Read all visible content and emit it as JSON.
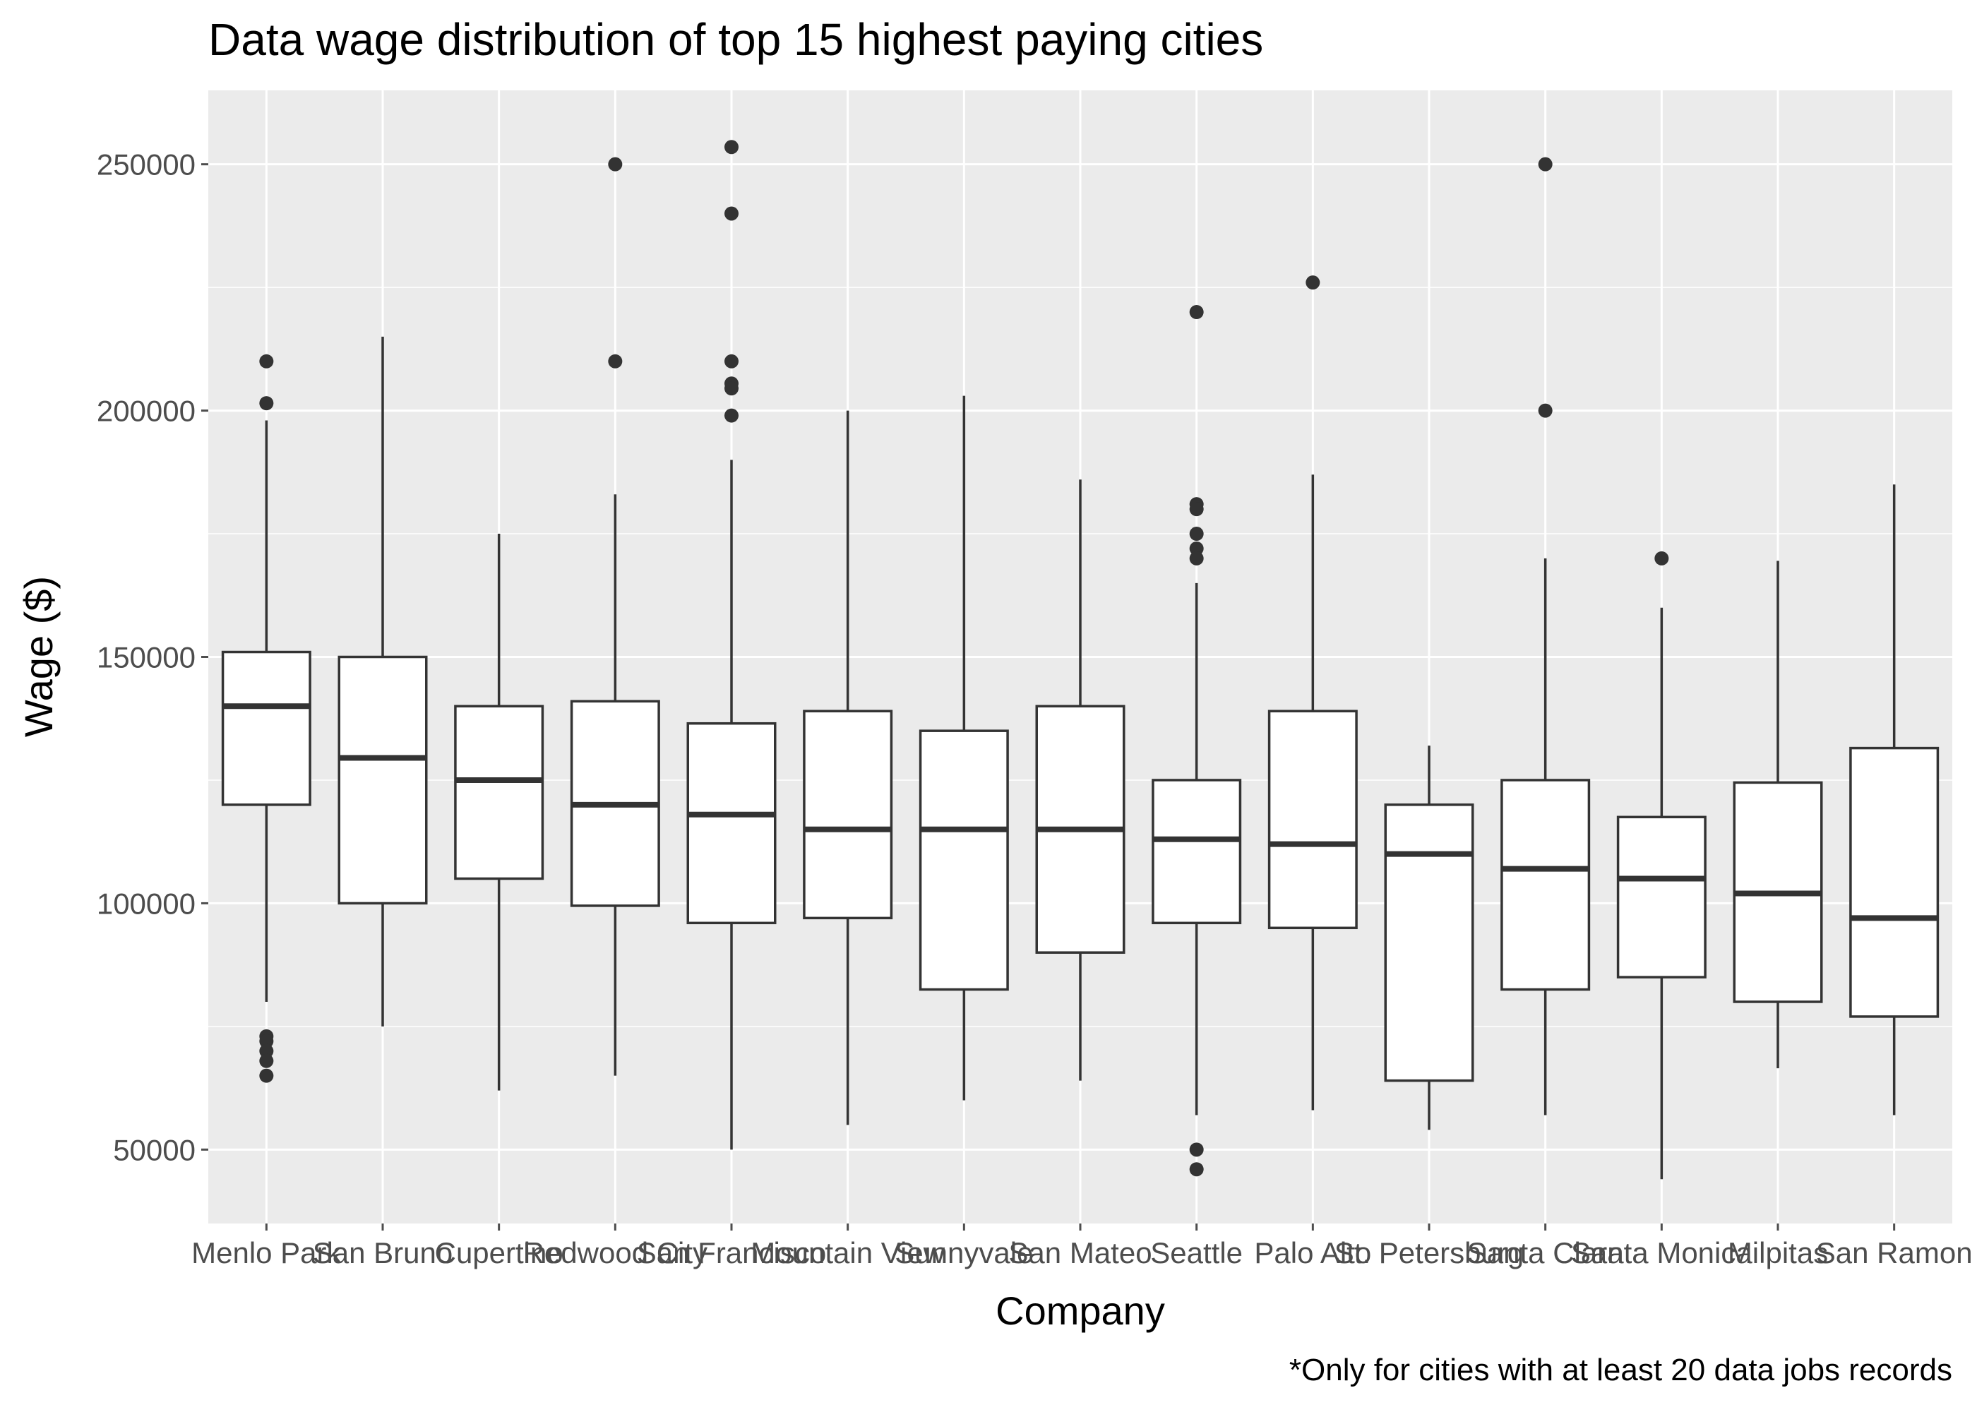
{
  "chart_data": {
    "type": "boxplot",
    "title": "Data wage distribution of top 15 highest paying cities",
    "xlabel": "Company",
    "ylabel": "Wage ($)",
    "caption": "*Only for cities with at least 20 data jobs records",
    "ylim": [
      35000,
      265000
    ],
    "yticks": [
      50000,
      100000,
      150000,
      200000,
      250000
    ],
    "grid": true,
    "legend": "none",
    "colors": {
      "panel": "#EBEBEB",
      "grid": "#FFFFFF",
      "box_fill": "#FFFFFF",
      "box_line": "#333333",
      "point": "#333333",
      "axis_text": "#4D4D4D",
      "title": "#000000"
    },
    "categories": [
      "Menlo Park",
      "San Bruno",
      "Cupertino",
      "Redwood City",
      "San Francisco",
      "Mountain View",
      "Sunnyvale",
      "San Mateo",
      "Seattle",
      "Palo Alto",
      "St. Petersburg",
      "Santa Clara",
      "Santa Monica",
      "Milpitas",
      "San Ramon"
    ],
    "boxes": [
      {
        "category": "Menlo Park",
        "whisker_low": 80000,
        "q1": 120000,
        "median": 140000,
        "q3": 151000,
        "whisker_high": 198000,
        "outliers": [
          210000,
          201500,
          73000,
          72000,
          70000,
          68000,
          65000
        ]
      },
      {
        "category": "San Bruno",
        "whisker_low": 75000,
        "q1": 100000,
        "median": 129500,
        "q3": 150000,
        "whisker_high": 215000,
        "outliers": []
      },
      {
        "category": "Cupertino",
        "whisker_low": 62000,
        "q1": 105000,
        "median": 125000,
        "q3": 140000,
        "whisker_high": 175000,
        "outliers": []
      },
      {
        "category": "Redwood City",
        "whisker_low": 65000,
        "q1": 99500,
        "median": 120000,
        "q3": 141000,
        "whisker_high": 183000,
        "outliers": [
          250000,
          210000
        ]
      },
      {
        "category": "San Francisco",
        "whisker_low": 50000,
        "q1": 96000,
        "median": 118000,
        "q3": 136500,
        "whisker_high": 190000,
        "outliers": [
          253500,
          240000,
          210000,
          205500,
          204500,
          199000
        ]
      },
      {
        "category": "Mountain View",
        "whisker_low": 55000,
        "q1": 97000,
        "median": 115000,
        "q3": 139000,
        "whisker_high": 200000,
        "outliers": []
      },
      {
        "category": "Sunnyvale",
        "whisker_low": 60000,
        "q1": 82500,
        "median": 115000,
        "q3": 135000,
        "whisker_high": 203000,
        "outliers": []
      },
      {
        "category": "San Mateo",
        "whisker_low": 64000,
        "q1": 90000,
        "median": 115000,
        "q3": 140000,
        "whisker_high": 186000,
        "outliers": []
      },
      {
        "category": "Seattle",
        "whisker_low": 57000,
        "q1": 96000,
        "median": 113000,
        "q3": 125000,
        "whisker_high": 165000,
        "outliers": [
          220000,
          181000,
          180000,
          175000,
          172000,
          170000,
          50000,
          46000
        ]
      },
      {
        "category": "Palo Alto",
        "whisker_low": 58000,
        "q1": 95000,
        "median": 112000,
        "q3": 139000,
        "whisker_high": 187000,
        "outliers": [
          226000
        ]
      },
      {
        "category": "St. Petersburg",
        "whisker_low": 54000,
        "q1": 64000,
        "median": 110000,
        "q3": 120000,
        "whisker_high": 132000,
        "outliers": []
      },
      {
        "category": "Santa Clara",
        "whisker_low": 57000,
        "q1": 82500,
        "median": 107000,
        "q3": 125000,
        "whisker_high": 170000,
        "outliers": [
          250000,
          200000
        ]
      },
      {
        "category": "Santa Monica",
        "whisker_low": 44000,
        "q1": 85000,
        "median": 105000,
        "q3": 117500,
        "whisker_high": 160000,
        "outliers": [
          170000
        ]
      },
      {
        "category": "Milpitas",
        "whisker_low": 66500,
        "q1": 80000,
        "median": 102000,
        "q3": 124500,
        "whisker_high": 169500,
        "outliers": []
      },
      {
        "category": "San Ramon",
        "whisker_low": 57000,
        "q1": 77000,
        "median": 97000,
        "q3": 131500,
        "whisker_high": 185000,
        "outliers": []
      }
    ]
  }
}
